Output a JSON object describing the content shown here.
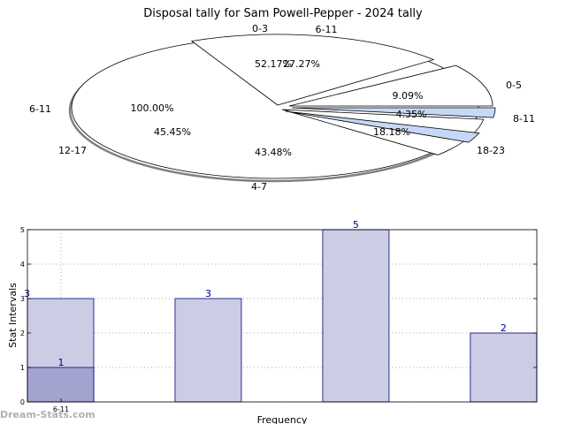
{
  "watermark": "Dream-Stats.com",
  "colors": {
    "slice_fill": "#ffffff",
    "slice_edge": "#000000",
    "highlight_fill": "#c6d8f7",
    "shadow": "#808080",
    "bar_fill": "#cccce4",
    "bar_fill_dark": "#a3a3cf",
    "bar_edge": "#000080",
    "bar_label": "#000080",
    "grid": "#aaaaaa"
  },
  "chart_data": [
    {
      "type": "pie",
      "title": "Disposal tally for Sam Powell-Pepper - 2024 tally",
      "outer_labels": [
        "0-3",
        "6-11",
        "0-5",
        "8-11",
        "18-23",
        "4-7",
        "12-17",
        "6-11"
      ],
      "inner_labels": [
        "52.17%",
        "27.27%",
        "9.09%",
        "4.35%",
        "18.18%",
        "43.48%",
        "45.45%",
        "100.00%"
      ],
      "note": "overlapping rings; rendered as overlaid exploded slices"
    },
    {
      "type": "bar",
      "xlabel": "Frequency",
      "ylabel": "Stat Intervals",
      "ylim": [
        0,
        5
      ],
      "yticks": [
        0,
        1,
        2,
        3,
        4,
        5
      ],
      "xtick_labels": [
        "6-11"
      ],
      "grid": true,
      "series": [
        {
          "values": [
            3,
            3,
            5,
            2
          ]
        },
        {
          "values": [
            1
          ]
        }
      ]
    }
  ]
}
